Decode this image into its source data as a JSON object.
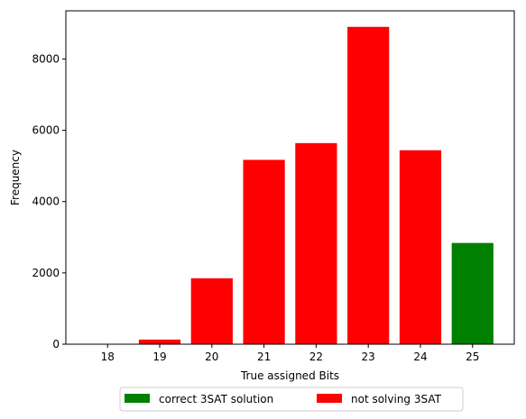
{
  "chart_data": {
    "type": "bar",
    "title": "",
    "xlabel": "True assigned Bits",
    "ylabel": "Frequency",
    "categories": [
      "18",
      "19",
      "20",
      "21",
      "22",
      "23",
      "24",
      "25"
    ],
    "x": [
      18,
      19,
      20,
      21,
      22,
      23,
      24,
      25
    ],
    "ylim": [
      0,
      9350
    ],
    "xlim": [
      17.2,
      25.8
    ],
    "yticks": [
      0,
      2000,
      4000,
      6000,
      8000
    ],
    "ytick_labels": [
      "0",
      "2000",
      "4000",
      "6000",
      "8000"
    ],
    "grid": false,
    "legend_placement": "bottom-center",
    "series": [
      {
        "name": "correct 3SAT solution",
        "color": "#008000",
        "values": [
          0,
          0,
          0,
          0,
          0,
          0,
          0,
          2840
        ]
      },
      {
        "name": "not solving 3SAT",
        "color": "#ff0000",
        "values": [
          5,
          130,
          1850,
          5170,
          5640,
          8900,
          5440,
          0
        ]
      }
    ]
  }
}
